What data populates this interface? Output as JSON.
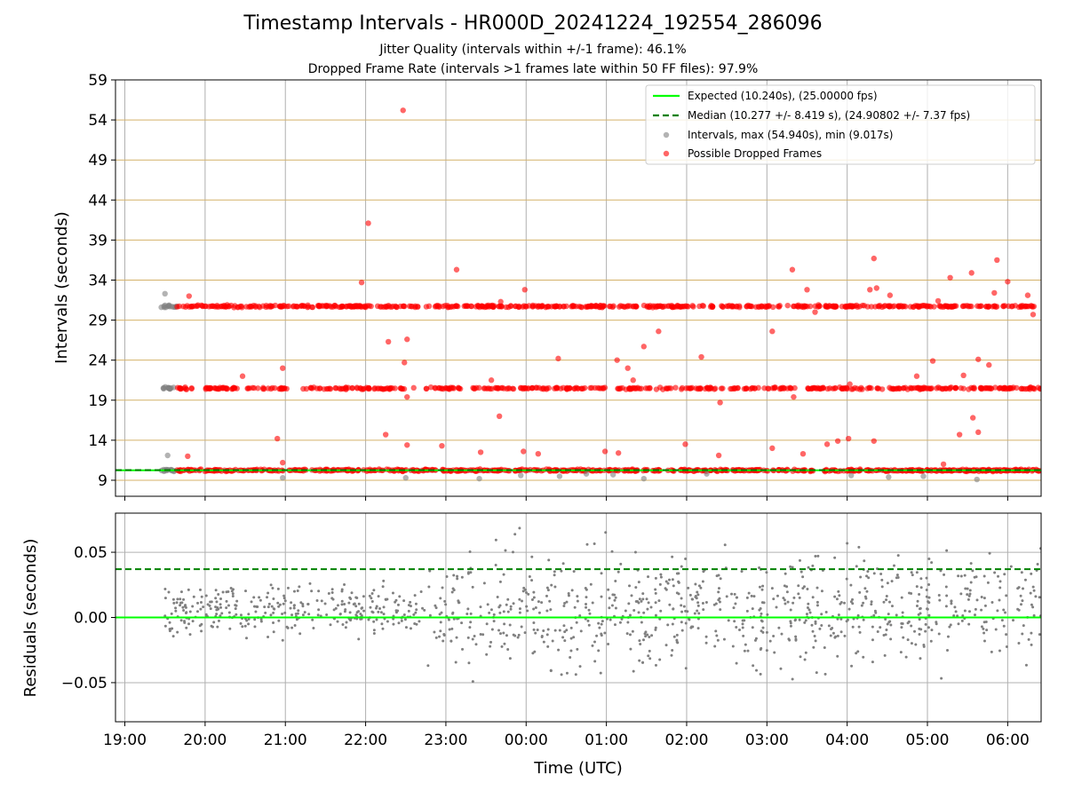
{
  "chart_data": [
    {
      "type": "scatter",
      "title": "Timestamp Intervals - HR000D_20241224_192554_286096",
      "subtitle_1": "Jitter Quality (intervals within +/-1 frame): 46.1%",
      "subtitle_2": "Dropped Frame Rate (intervals >1 frames late within 50 FF files): 97.9%",
      "ylabel": "Intervals (seconds)",
      "ylim": [
        7,
        59
      ],
      "yticks": [
        "9",
        "14",
        "19",
        "24",
        "29",
        "34",
        "39",
        "44",
        "49",
        "54",
        "59"
      ],
      "xlim": [
        "19:00",
        "06:25"
      ],
      "grid": true,
      "legend_position": "upper right",
      "legend": [
        "Expected (10.240s), (25.00000 fps)",
        "Median (10.277 +/- 8.419 s), (24.90802 +/- 7.37 fps)",
        "Intervals, max (54.940s), min (9.017s)",
        "Possible Dropped Frames"
      ],
      "expected_interval": 10.24,
      "median_interval": 10.277,
      "max_interval": 54.94,
      "min_interval": 9.017,
      "bands": [
        10.24,
        20.48,
        30.72
      ],
      "dropped_outliers": [
        {
          "t": "19:47",
          "y": 12.0
        },
        {
          "t": "19:48",
          "y": 32.0
        },
        {
          "t": "20:28",
          "y": 22.0
        },
        {
          "t": "20:54",
          "y": 14.2
        },
        {
          "t": "20:58",
          "y": 23.0
        },
        {
          "t": "20:58",
          "y": 11.2
        },
        {
          "t": "21:57",
          "y": 33.7
        },
        {
          "t": "22:02",
          "y": 41.1
        },
        {
          "t": "22:15",
          "y": 14.7
        },
        {
          "t": "22:17",
          "y": 26.3
        },
        {
          "t": "22:28",
          "y": 55.2
        },
        {
          "t": "22:29",
          "y": 23.7
        },
        {
          "t": "22:31",
          "y": 26.6
        },
        {
          "t": "22:31",
          "y": 13.4
        },
        {
          "t": "22:31",
          "y": 19.4
        },
        {
          "t": "22:57",
          "y": 13.3
        },
        {
          "t": "23:08",
          "y": 35.3
        },
        {
          "t": "23:26",
          "y": 12.5
        },
        {
          "t": "23:34",
          "y": 21.5
        },
        {
          "t": "23:40",
          "y": 17.0
        },
        {
          "t": "23:41",
          "y": 31.3
        },
        {
          "t": "23:58",
          "y": 12.6
        },
        {
          "t": "23:59",
          "y": 32.8
        },
        {
          "t": "00:09",
          "y": 12.3
        },
        {
          "t": "00:24",
          "y": 24.2
        },
        {
          "t": "00:59",
          "y": 12.6
        },
        {
          "t": "01:08",
          "y": 24.0
        },
        {
          "t": "01:09",
          "y": 12.4
        },
        {
          "t": "01:16",
          "y": 23.0
        },
        {
          "t": "01:20",
          "y": 21.5
        },
        {
          "t": "01:28",
          "y": 25.7
        },
        {
          "t": "01:39",
          "y": 27.6
        },
        {
          "t": "01:59",
          "y": 13.5
        },
        {
          "t": "02:11",
          "y": 24.4
        },
        {
          "t": "02:25",
          "y": 18.7
        },
        {
          "t": "02:24",
          "y": 12.1
        },
        {
          "t": "03:04",
          "y": 27.6
        },
        {
          "t": "03:04",
          "y": 13.0
        },
        {
          "t": "03:19",
          "y": 35.3
        },
        {
          "t": "03:20",
          "y": 19.4
        },
        {
          "t": "03:27",
          "y": 12.3
        },
        {
          "t": "03:30",
          "y": 32.8
        },
        {
          "t": "03:36",
          "y": 30.0
        },
        {
          "t": "03:45",
          "y": 13.5
        },
        {
          "t": "03:53",
          "y": 13.9
        },
        {
          "t": "04:01",
          "y": 14.2
        },
        {
          "t": "04:02",
          "y": 21.0
        },
        {
          "t": "04:17",
          "y": 32.8
        },
        {
          "t": "04:20",
          "y": 36.7
        },
        {
          "t": "04:20",
          "y": 13.9
        },
        {
          "t": "04:22",
          "y": 33.0
        },
        {
          "t": "04:32",
          "y": 32.1
        },
        {
          "t": "04:52",
          "y": 22.0
        },
        {
          "t": "05:04",
          "y": 23.9
        },
        {
          "t": "05:08",
          "y": 31.4
        },
        {
          "t": "05:12",
          "y": 11.0
        },
        {
          "t": "05:17",
          "y": 34.3
        },
        {
          "t": "05:24",
          "y": 14.7
        },
        {
          "t": "05:27",
          "y": 22.1
        },
        {
          "t": "05:33",
          "y": 34.9
        },
        {
          "t": "05:34",
          "y": 16.8
        },
        {
          "t": "05:38",
          "y": 15.0
        },
        {
          "t": "05:38",
          "y": 24.1
        },
        {
          "t": "05:46",
          "y": 23.4
        },
        {
          "t": "05:50",
          "y": 32.4
        },
        {
          "t": "05:52",
          "y": 36.5
        },
        {
          "t": "06:00",
          "y": 33.8
        },
        {
          "t": "06:15",
          "y": 32.1
        },
        {
          "t": "06:19",
          "y": 29.7
        }
      ],
      "interval_outliers": [
        {
          "t": "19:30",
          "y": 32.3
        },
        {
          "t": "19:32",
          "y": 12.1
        },
        {
          "t": "20:58",
          "y": 9.3
        },
        {
          "t": "22:30",
          "y": 9.3
        },
        {
          "t": "23:25",
          "y": 9.2
        },
        {
          "t": "23:56",
          "y": 9.6
        },
        {
          "t": "00:25",
          "y": 9.5
        },
        {
          "t": "00:45",
          "y": 9.8
        },
        {
          "t": "01:05",
          "y": 9.7
        },
        {
          "t": "01:28",
          "y": 9.2
        },
        {
          "t": "02:15",
          "y": 9.8
        },
        {
          "t": "04:03",
          "y": 9.6
        },
        {
          "t": "04:31",
          "y": 9.4
        },
        {
          "t": "04:57",
          "y": 9.5
        },
        {
          "t": "05:37",
          "y": 9.1
        }
      ]
    },
    {
      "type": "scatter",
      "ylabel": "Residuals (seconds)",
      "xlabel": "Time (UTC)",
      "ylim": [
        -0.08,
        0.08
      ],
      "yticks": [
        "−0.05",
        "0.00",
        "0.05"
      ],
      "xticks": [
        "19:00",
        "20:00",
        "21:00",
        "22:00",
        "23:00",
        "00:00",
        "01:00",
        "02:00",
        "03:00",
        "04:00",
        "05:00",
        "06:00"
      ],
      "expected_residual": 0.0,
      "median_residual": 0.037,
      "grid": true
    }
  ],
  "colors": {
    "expected": "#00ff00",
    "median": "#008000",
    "intervals": "#808080",
    "dropped": "#ff0000",
    "band_grid": "#d4b26a",
    "grid": "#b0b0b0"
  }
}
